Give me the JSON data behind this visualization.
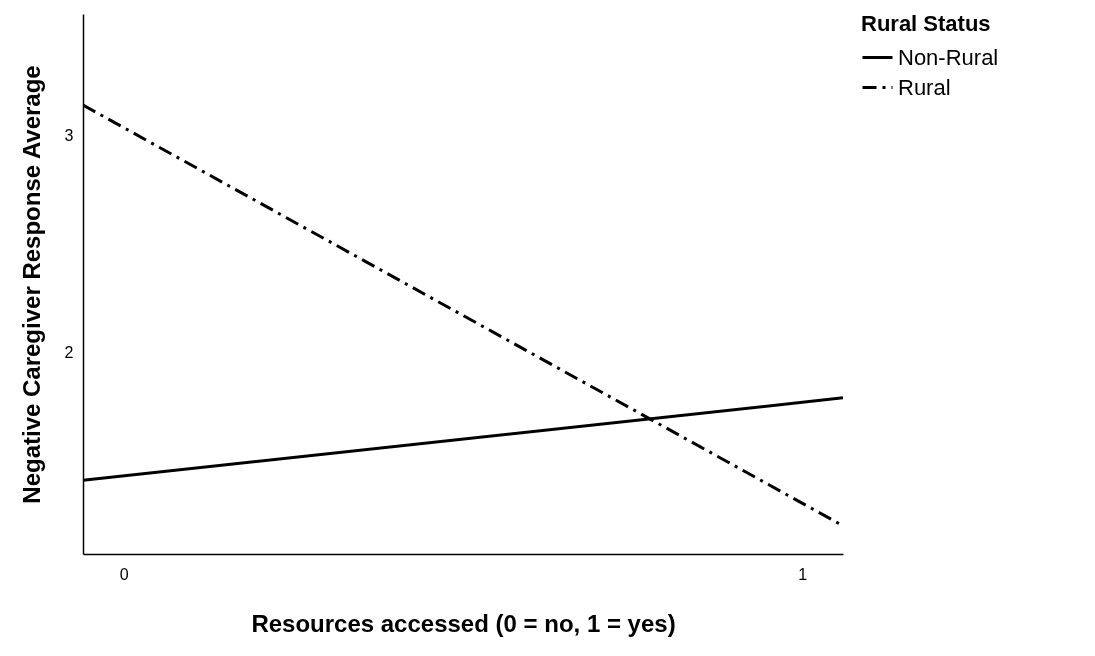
{
  "chart_data": {
    "type": "line",
    "xlabel": "Resources accessed (0 = no, 1 = yes)",
    "ylabel": "Negative Caregiver Response Average",
    "legend_title": "Rural Status",
    "x": [
      -0.06,
      1.06
    ],
    "series": [
      {
        "name": "Non-Rural",
        "color": "#000000",
        "line_style": "solid",
        "values": [
          1.41,
          1.79
        ]
      },
      {
        "name": "Rural",
        "color": "#000000",
        "line_style": "dashdot",
        "values": [
          3.14,
          1.2
        ]
      }
    ],
    "xlim": [
      -0.06,
      1.06
    ],
    "xticks": [
      0,
      1
    ],
    "ylim": [
      1.07,
      3.56
    ],
    "yticks": [
      2,
      3
    ],
    "grid": false,
    "legend": "top right",
    "marker": "none"
  }
}
